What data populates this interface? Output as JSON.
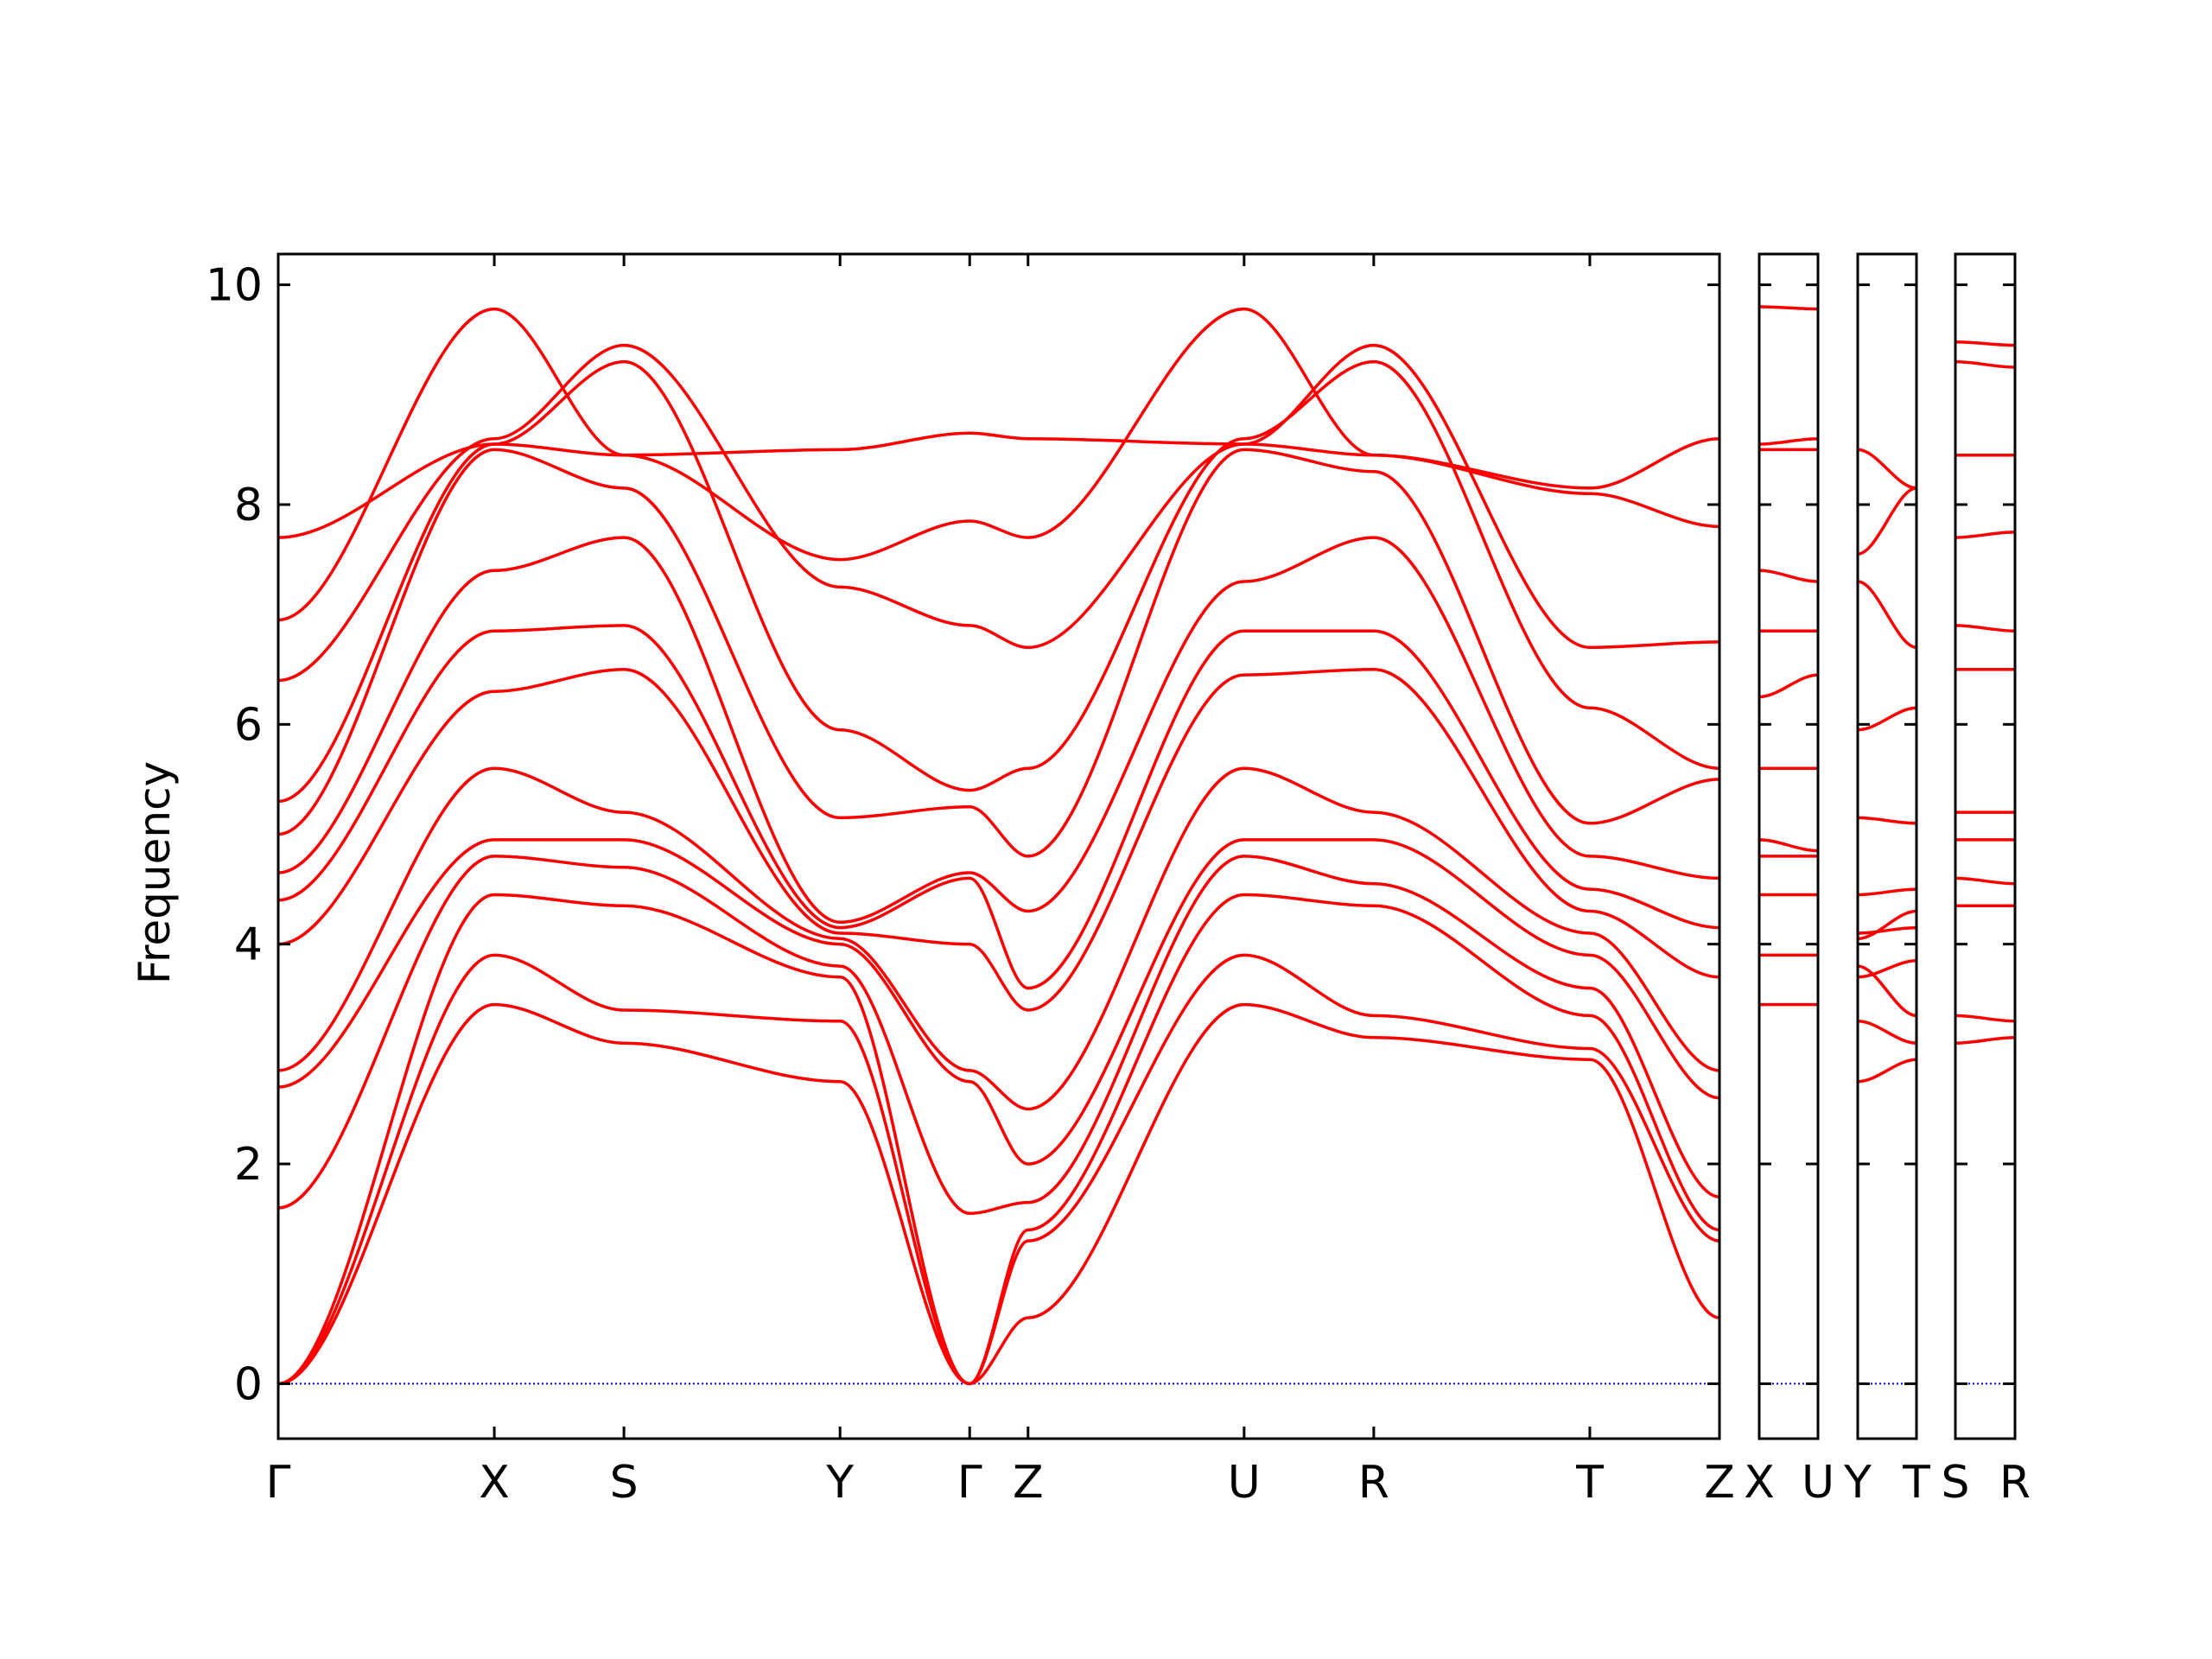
{
  "chart_data": {
    "type": "line",
    "ylabel": "Frequency",
    "ylim": [
      -0.5,
      10.28
    ],
    "yticks": [
      "0",
      "2",
      "4",
      "6",
      "8",
      "10"
    ],
    "ytick_values": [
      0,
      2,
      4,
      6,
      8,
      10
    ],
    "grid": false,
    "legend": "none",
    "line_color": "#ff0000",
    "zero_line_color": "#0000ff",
    "panels": [
      {
        "labels": [
          "Γ",
          "X",
          "S",
          "Y",
          "Γ",
          "Z",
          "U",
          "R",
          "T",
          "Z"
        ],
        "positions": [
          0,
          0.5,
          0.8,
          1.3,
          1.6,
          1.735,
          2.235,
          2.535,
          3.035,
          3.335
        ],
        "bands": [
          {
            "x": [
              0,
              0.5,
              0.8,
              1.3,
              1.6,
              1.735,
              2.235,
              2.535,
              3.035,
              3.335
            ],
            "y": [
              0,
              3.45,
              3.1,
              2.75,
              0,
              0.6,
              3.45,
              3.15,
              2.95,
              0.6
            ]
          },
          {
            "x": [
              0,
              0.5,
              0.8,
              1.3,
              1.6,
              1.735,
              2.235,
              2.535,
              3.035,
              3.335
            ],
            "y": [
              0,
              3.9,
              3.4,
              3.3,
              0,
              1.3,
              3.9,
              3.35,
              3.05,
              1.3
            ]
          },
          {
            "x": [
              0,
              0.5,
              0.8,
              1.3,
              1.6,
              1.735,
              2.235,
              2.535,
              3.035,
              3.335
            ],
            "y": [
              0,
              4.45,
              4.35,
              3.7,
              0,
              1.4,
              4.45,
              4.35,
              3.35,
              1.4
            ]
          },
          {
            "x": [
              0,
              0.5,
              0.8,
              1.3,
              1.6,
              1.735,
              2.235,
              2.535,
              3.035,
              3.335
            ],
            "y": [
              1.6,
              4.8,
              4.7,
              3.8,
              1.55,
              1.65,
              4.8,
              4.55,
              3.6,
              1.7
            ]
          },
          {
            "x": [
              0,
              0.5,
              0.8,
              1.3,
              1.6,
              1.735,
              2.235,
              2.535,
              3.035,
              3.335
            ],
            "y": [
              2.7,
              4.95,
              4.95,
              4.0,
              2.75,
              2.0,
              4.95,
              4.95,
              3.9,
              2.6
            ]
          },
          {
            "x": [
              0,
              0.5,
              0.8,
              1.3,
              1.6,
              1.735,
              2.235,
              2.535,
              3.035,
              3.335
            ],
            "y": [
              2.85,
              5.6,
              5.2,
              4.05,
              2.85,
              2.5,
              5.6,
              5.2,
              4.1,
              2.85
            ]
          },
          {
            "x": [
              0,
              0.5,
              0.8,
              1.3,
              1.6,
              1.735,
              2.235,
              2.535,
              3.035,
              3.335
            ],
            "y": [
              4.0,
              6.3,
              6.5,
              4.1,
              4.0,
              3.4,
              6.45,
              6.5,
              4.3,
              3.7
            ]
          },
          {
            "x": [
              0,
              0.5,
              0.8,
              1.3,
              1.6,
              1.735,
              2.235,
              2.535,
              3.035,
              3.335
            ],
            "y": [
              4.4,
              6.85,
              6.9,
              4.15,
              4.6,
              3.6,
              6.85,
              6.85,
              4.5,
              4.15
            ]
          },
          {
            "x": [
              0,
              0.5,
              0.8,
              1.3,
              1.6,
              1.735,
              2.235,
              2.535,
              3.035,
              3.335
            ],
            "y": [
              4.65,
              7.4,
              7.7,
              4.2,
              4.65,
              4.3,
              7.3,
              7.7,
              4.8,
              4.6
            ]
          },
          {
            "x": [
              0,
              0.5,
              0.8,
              1.3,
              1.6,
              1.735,
              2.235,
              2.535,
              3.035,
              3.335
            ],
            "y": [
              5.0,
              8.5,
              8.15,
              5.15,
              5.25,
              4.8,
              8.5,
              8.3,
              5.1,
              5.5
            ]
          },
          {
            "x": [
              0,
              0.5,
              0.8,
              1.3,
              1.6,
              1.735,
              2.235,
              2.535,
              3.035,
              3.335
            ],
            "y": [
              5.3,
              8.55,
              9.3,
              5.95,
              5.4,
              5.6,
              8.6,
              9.3,
              6.15,
              5.6
            ]
          },
          {
            "x": [
              0,
              0.5,
              0.8,
              1.3,
              1.6,
              1.735,
              2.235,
              2.535,
              3.035,
              3.335
            ],
            "y": [
              6.4,
              8.6,
              9.45,
              7.25,
              6.9,
              6.7,
              8.55,
              9.45,
              6.7,
              6.75
            ]
          },
          {
            "x": [
              0,
              0.5,
              0.8,
              1.3,
              1.6,
              1.735,
              2.235,
              2.535,
              3.035,
              3.335
            ],
            "y": [
              6.95,
              9.78,
              8.45,
              7.5,
              7.85,
              7.7,
              9.78,
              8.45,
              8.1,
              7.8
            ]
          },
          {
            "x": [
              0,
              0.5,
              0.8,
              1.3,
              1.6,
              1.735,
              2.235,
              2.535,
              3.035,
              3.335
            ],
            "y": [
              7.7,
              8.55,
              8.45,
              8.5,
              8.65,
              8.6,
              8.55,
              8.45,
              8.15,
              8.6
            ]
          }
        ]
      },
      {
        "labels": [
          "X",
          "U"
        ],
        "positions": [
          0,
          0.5
        ],
        "bands": [
          {
            "x": [
              0,
              0.5
            ],
            "y": [
              3.45,
              3.45
            ]
          },
          {
            "x": [
              0,
              0.5
            ],
            "y": [
              3.9,
              3.9
            ]
          },
          {
            "x": [
              0,
              0.5
            ],
            "y": [
              4.45,
              4.45
            ]
          },
          {
            "x": [
              0,
              0.5
            ],
            "y": [
              4.95,
              4.85
            ]
          },
          {
            "x": [
              0,
              0.5
            ],
            "y": [
              4.8,
              4.8
            ]
          },
          {
            "x": [
              0,
              0.5
            ],
            "y": [
              5.6,
              5.6
            ]
          },
          {
            "x": [
              0,
              0.5
            ],
            "y": [
              6.25,
              6.45
            ]
          },
          {
            "x": [
              0,
              0.5
            ],
            "y": [
              6.85,
              6.85
            ]
          },
          {
            "x": [
              0,
              0.5
            ],
            "y": [
              7.4,
              7.3
            ]
          },
          {
            "x": [
              0,
              0.5
            ],
            "y": [
              8.5,
              8.5
            ]
          },
          {
            "x": [
              0,
              0.5
            ],
            "y": [
              8.55,
              8.6
            ]
          },
          {
            "x": [
              0,
              0.5
            ],
            "y": [
              9.8,
              9.78
            ]
          }
        ]
      },
      {
        "labels": [
          "Y",
          "T"
        ],
        "positions": [
          0,
          0.5
        ],
        "bands": [
          {
            "x": [
              0,
              0.5
            ],
            "y": [
              2.75,
              2.95
            ]
          },
          {
            "x": [
              0,
              0.5
            ],
            "y": [
              3.3,
              3.1
            ]
          },
          {
            "x": [
              0,
              0.5
            ],
            "y": [
              3.8,
              3.35
            ]
          },
          {
            "x": [
              0,
              0.5
            ],
            "y": [
              3.7,
              3.85
            ]
          },
          {
            "x": [
              0,
              0.5
            ],
            "y": [
              4.05,
              4.3
            ]
          },
          {
            "x": [
              0,
              0.5
            ],
            "y": [
              4.1,
              4.15
            ]
          },
          {
            "x": [
              0,
              0.5
            ],
            "y": [
              4.45,
              4.5
            ]
          },
          {
            "x": [
              0,
              0.5
            ],
            "y": [
              5.15,
              5.1
            ]
          },
          {
            "x": [
              0,
              0.5
            ],
            "y": [
              5.95,
              6.15
            ]
          },
          {
            "x": [
              0,
              0.5
            ],
            "y": [
              7.3,
              6.7
            ]
          },
          {
            "x": [
              0,
              0.5
            ],
            "y": [
              7.55,
              8.15
            ]
          },
          {
            "x": [
              0,
              0.5
            ],
            "y": [
              8.5,
              8.15
            ]
          }
        ]
      },
      {
        "labels": [
          "S",
          "R"
        ],
        "positions": [
          0,
          0.5
        ],
        "bands": [
          {
            "x": [
              0,
              0.5
            ],
            "y": [
              3.1,
              3.15
            ]
          },
          {
            "x": [
              0,
              0.5
            ],
            "y": [
              3.35,
              3.3
            ]
          },
          {
            "x": [
              0,
              0.5
            ],
            "y": [
              4.35,
              4.35
            ]
          },
          {
            "x": [
              0,
              0.5
            ],
            "y": [
              4.6,
              4.55
            ]
          },
          {
            "x": [
              0,
              0.5
            ],
            "y": [
              4.95,
              4.95
            ]
          },
          {
            "x": [
              0,
              0.5
            ],
            "y": [
              5.2,
              5.2
            ]
          },
          {
            "x": [
              0,
              0.5
            ],
            "y": [
              6.5,
              6.5
            ]
          },
          {
            "x": [
              0,
              0.5
            ],
            "y": [
              6.9,
              6.85
            ]
          },
          {
            "x": [
              0,
              0.5
            ],
            "y": [
              7.7,
              7.75
            ]
          },
          {
            "x": [
              0,
              0.5
            ],
            "y": [
              8.45,
              8.45
            ]
          },
          {
            "x": [
              0,
              0.5
            ],
            "y": [
              9.3,
              9.25
            ]
          },
          {
            "x": [
              0,
              0.5
            ],
            "y": [
              9.48,
              9.45
            ]
          }
        ]
      }
    ]
  }
}
